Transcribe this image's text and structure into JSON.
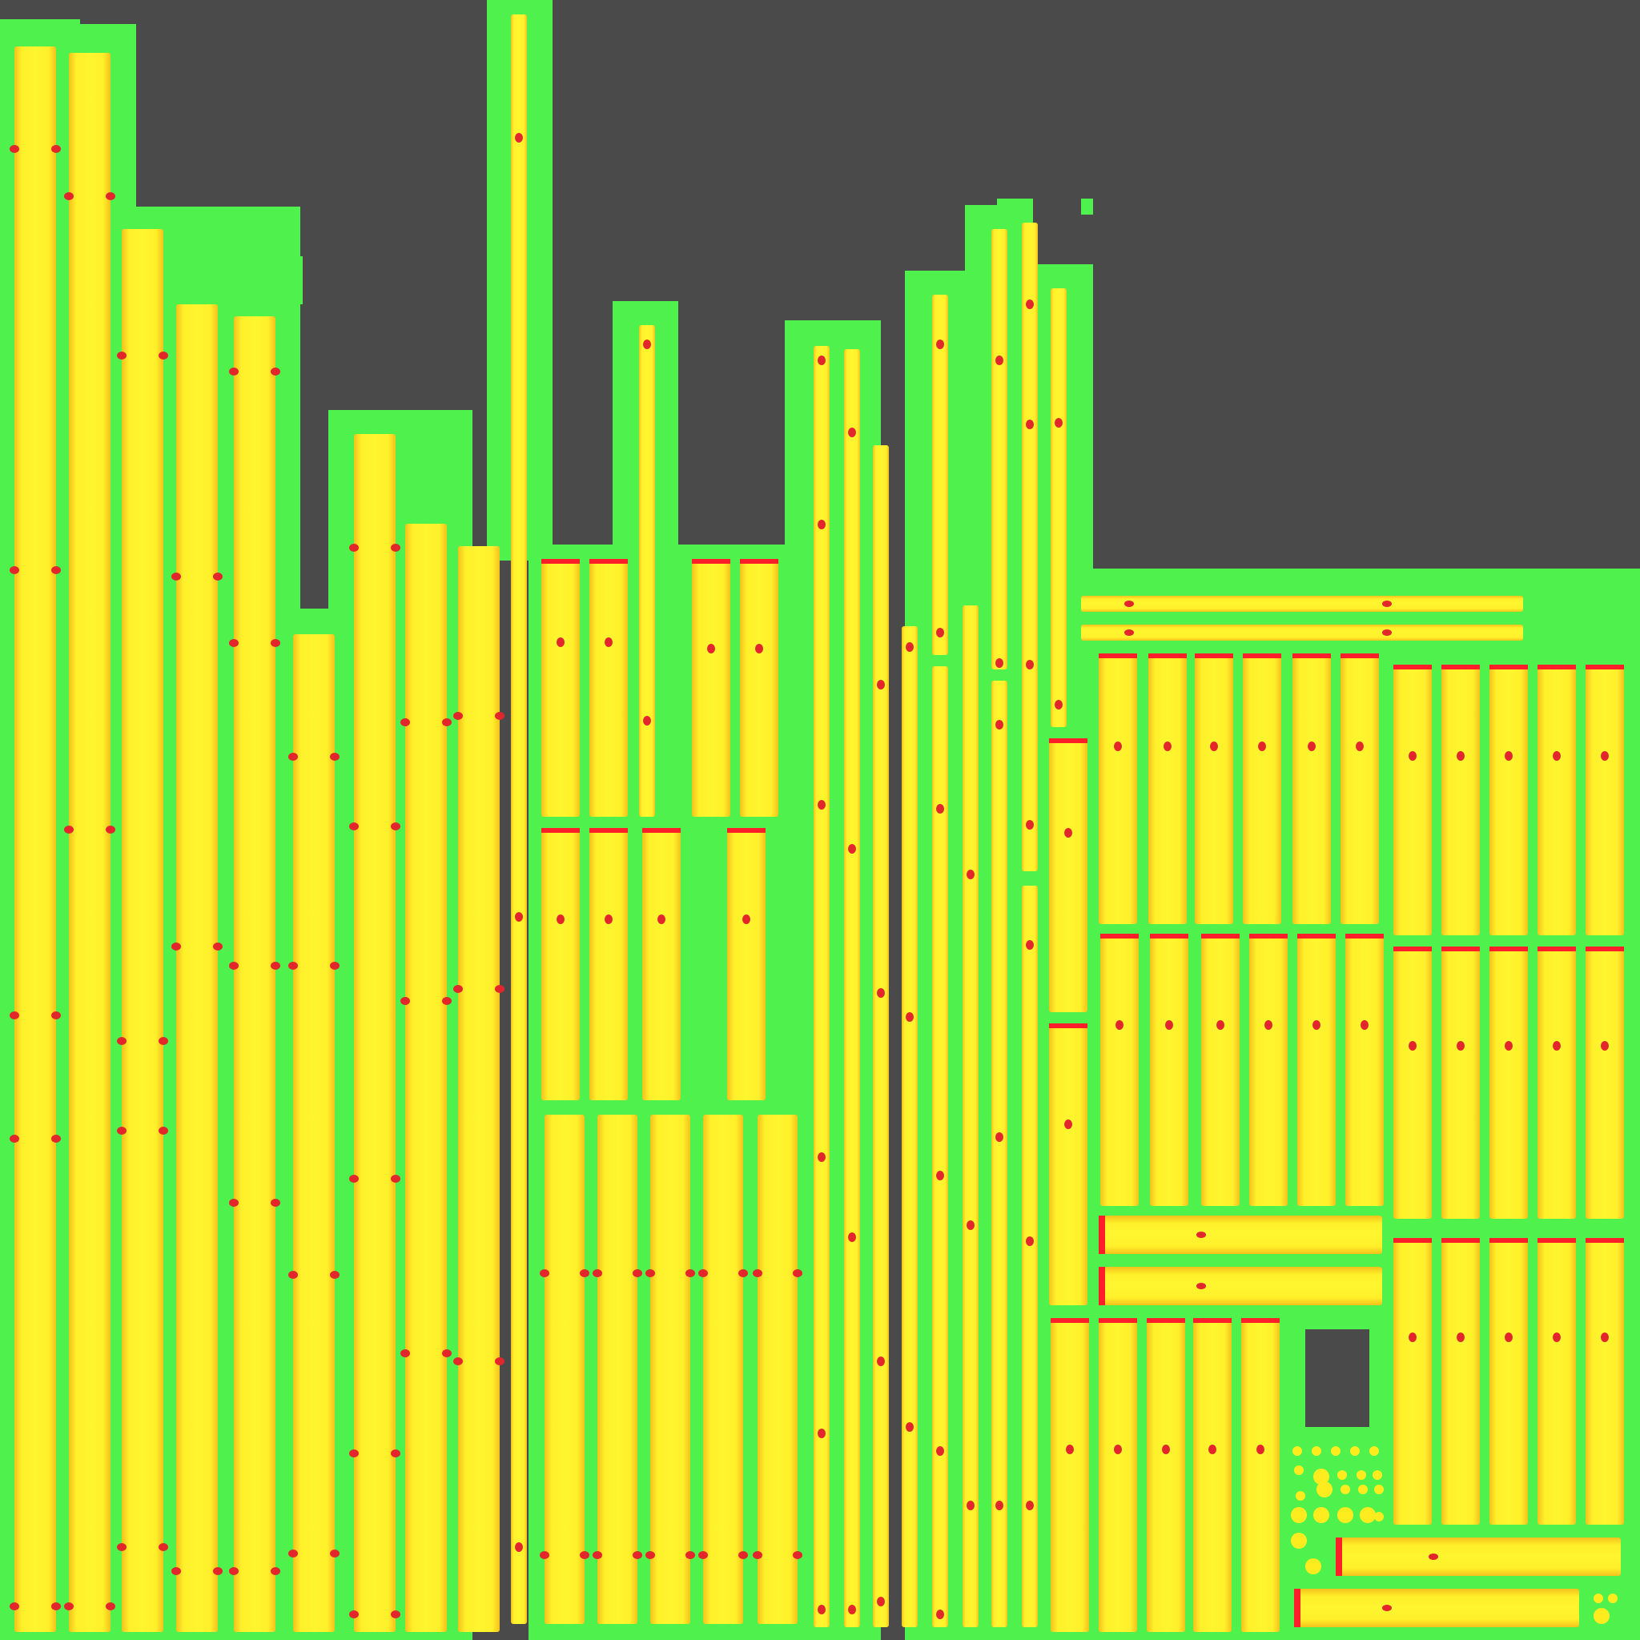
{
  "image": {
    "kind": "uv-texture-atlas",
    "colors": {
      "background": "#4a4a4a",
      "padding": "#4ff24c",
      "island_fill": "#ffef22",
      "island_edge": "#f3c420",
      "seam_marks": "#e3262c",
      "cap_marks": "#ff1e2a"
    }
  }
}
